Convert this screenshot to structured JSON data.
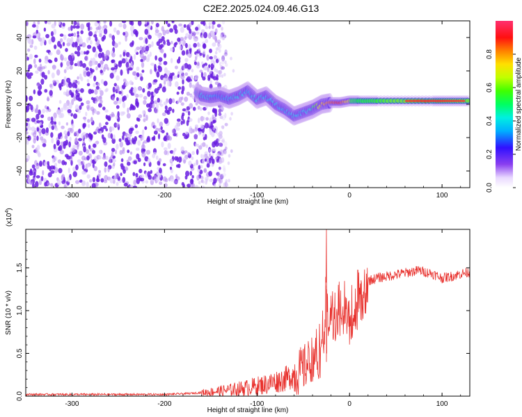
{
  "title": "C2E2.2025.024.09.46.G13",
  "chart_data": [
    {
      "type": "heatmap",
      "xlabel": "Height of straight line (km)",
      "ylabel": "Frequency (Hz)",
      "xlim": [
        -350,
        130
      ],
      "ylim": [
        -50,
        50
      ],
      "xticks": [
        -300,
        -200,
        -100,
        0,
        100
      ],
      "yticks": [
        -40,
        -20,
        0,
        20,
        40
      ],
      "colorbar": {
        "label": "Normalized spectral amplitude",
        "range": [
          0,
          1
        ],
        "ticks": [
          0.0,
          0.2,
          0.4,
          0.6,
          0.8
        ]
      },
      "noise_region_x": [
        -350,
        -133
      ],
      "signal_track": [
        {
          "x": -165,
          "y": 7,
          "amp": 0.35
        },
        {
          "x": -160,
          "y": 5,
          "amp": 0.4
        },
        {
          "x": -150,
          "y": 4,
          "amp": 0.35
        },
        {
          "x": -140,
          "y": 5,
          "amp": 0.3
        },
        {
          "x": -130,
          "y": 3,
          "amp": 0.35
        },
        {
          "x": -120,
          "y": 5,
          "amp": 0.4
        },
        {
          "x": -110,
          "y": 8,
          "amp": 0.35
        },
        {
          "x": -100,
          "y": 3,
          "amp": 0.4
        },
        {
          "x": -90,
          "y": 5,
          "amp": 0.35
        },
        {
          "x": -80,
          "y": 0,
          "amp": 0.4
        },
        {
          "x": -70,
          "y": -3,
          "amp": 0.35
        },
        {
          "x": -60,
          "y": -7,
          "amp": 0.4
        },
        {
          "x": -50,
          "y": -5,
          "amp": 0.35
        },
        {
          "x": -40,
          "y": -3,
          "amp": 0.45
        },
        {
          "x": -30,
          "y": 0,
          "amp": 0.75
        },
        {
          "x": -20,
          "y": 1,
          "amp": 0.85
        },
        {
          "x": -10,
          "y": 1,
          "amp": 0.9
        },
        {
          "x": 0,
          "y": 2,
          "amp": 0.7
        },
        {
          "x": 10,
          "y": 2,
          "amp": 0.55
        },
        {
          "x": 30,
          "y": 2,
          "amp": 0.6
        },
        {
          "x": 60,
          "y": 2,
          "amp": 0.75
        },
        {
          "x": 90,
          "y": 2,
          "amp": 0.95
        },
        {
          "x": 110,
          "y": 2,
          "amp": 0.8
        },
        {
          "x": 130,
          "y": 2,
          "amp": 0.7
        }
      ]
    },
    {
      "type": "line",
      "xlabel": "Height of straight line (km)",
      "ylabel": "SNR (10 * v/v)",
      "y_multiplier": "(x10",
      "y_multiplier_exp": "4",
      "xlim": [
        -350,
        130
      ],
      "ylim": [
        0,
        1.95
      ],
      "xticks": [
        -300,
        -200,
        -100,
        0,
        100
      ],
      "yticks": [
        "0.0",
        "0.5",
        "1.0",
        "1.5"
      ],
      "series": [
        {
          "color": "#e8302c",
          "x": [
            -350,
            -300,
            -250,
            -200,
            -175,
            -150,
            -130,
            -110,
            -90,
            -70,
            -60,
            -50,
            -40,
            -35,
            -30,
            -27,
            -25,
            -23,
            -20,
            -15,
            -10,
            -5,
            0,
            5,
            10,
            20,
            30,
            40,
            50,
            60,
            75,
            90,
            100,
            110,
            120,
            130
          ],
          "y": [
            0.02,
            0.02,
            0.02,
            0.02,
            0.03,
            0.05,
            0.07,
            0.1,
            0.14,
            0.2,
            0.25,
            0.32,
            0.45,
            0.55,
            0.7,
            1.0,
            1.3,
            0.9,
            1.2,
            0.95,
            1.1,
            1.2,
            1.05,
            1.1,
            1.25,
            1.35,
            1.38,
            1.4,
            1.42,
            1.44,
            1.47,
            1.43,
            1.38,
            1.4,
            1.43,
            1.45
          ]
        }
      ]
    }
  ]
}
